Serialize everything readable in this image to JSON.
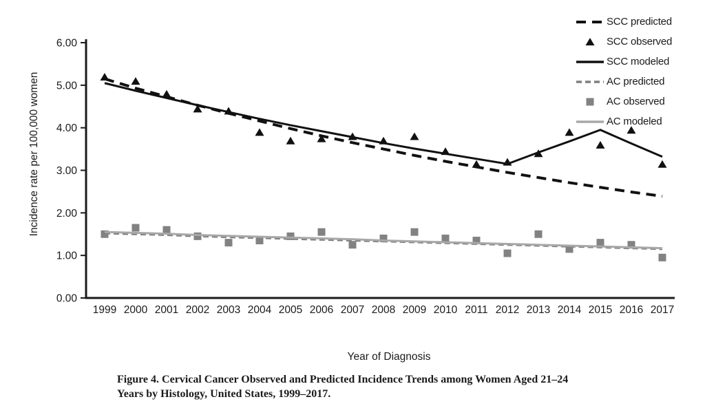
{
  "figure": {
    "caption_line1": "Figure 4. Cervical Cancer Observed and Predicted Incidence Trends among Women Aged 21–24",
    "caption_line2": "Years by Histology, United States, 1999–2017."
  },
  "chart_data": {
    "type": "line",
    "title": "",
    "xlabel": "Year of Diagnosis",
    "ylabel": "Incidence rate per 100,000 women",
    "ylim": [
      0,
      6
    ],
    "ytick_labels": [
      "0.00",
      "1.00",
      "2.00",
      "3.00",
      "4.00",
      "5.00",
      "6.00"
    ],
    "categories": [
      "1999",
      "2000",
      "2001",
      "2002",
      "2003",
      "2004",
      "2005",
      "2006",
      "2007",
      "2008",
      "2009",
      "2010",
      "2011",
      "2012",
      "2013",
      "2014",
      "2015",
      "2016",
      "2017"
    ],
    "grid": false,
    "legend_position": "top-right",
    "colors": {
      "scc": "#111111",
      "ac_dash": "#7f7f7f",
      "ac_marker": "#828282",
      "ac_line": "#a8a8a8"
    },
    "series": [
      {
        "name": "SCC predicted",
        "type": "line",
        "dash": "14 9",
        "width": 4,
        "color": "#111111",
        "values": [
          5.15,
          4.93,
          4.73,
          4.53,
          4.34,
          4.16,
          3.98,
          3.81,
          3.65,
          3.5,
          3.35,
          3.21,
          3.08,
          2.95,
          2.83,
          2.71,
          2.6,
          2.49,
          2.39
        ]
      },
      {
        "name": "SCC observed",
        "type": "scatter",
        "marker": "triangle",
        "color": "#111111",
        "values": [
          5.2,
          5.1,
          4.8,
          4.45,
          4.4,
          3.9,
          3.7,
          3.75,
          3.8,
          3.7,
          3.8,
          3.45,
          3.15,
          3.2,
          3.4,
          3.9,
          3.6,
          3.95,
          3.15
        ]
      },
      {
        "name": "SCC modeled",
        "type": "line",
        "dash": null,
        "width": 3,
        "color": "#111111",
        "values": [
          5.05,
          4.87,
          4.7,
          4.53,
          4.37,
          4.21,
          4.06,
          3.92,
          3.78,
          3.64,
          3.51,
          3.39,
          3.27,
          3.15,
          3.42,
          3.68,
          3.95,
          3.63,
          3.32
        ]
      },
      {
        "name": "AC predicted",
        "type": "line",
        "dash": "8 5",
        "width": 3,
        "color": "#7f7f7f",
        "values": [
          1.52,
          1.5,
          1.48,
          1.45,
          1.43,
          1.41,
          1.39,
          1.37,
          1.35,
          1.33,
          1.31,
          1.29,
          1.27,
          1.25,
          1.23,
          1.21,
          1.19,
          1.17,
          1.15
        ]
      },
      {
        "name": "AC observed",
        "type": "scatter",
        "marker": "square",
        "color": "#828282",
        "values": [
          1.5,
          1.65,
          1.6,
          1.45,
          1.3,
          1.35,
          1.45,
          1.55,
          1.25,
          1.4,
          1.55,
          1.4,
          1.35,
          1.05,
          1.5,
          1.15,
          1.3,
          1.25,
          0.95
        ]
      },
      {
        "name": "AC modeled",
        "type": "line",
        "dash": null,
        "width": 3,
        "color": "#a8a8a8",
        "values": [
          1.55,
          1.53,
          1.51,
          1.48,
          1.46,
          1.44,
          1.42,
          1.4,
          1.38,
          1.35,
          1.33,
          1.31,
          1.29,
          1.27,
          1.25,
          1.23,
          1.21,
          1.19,
          1.17
        ]
      }
    ]
  }
}
